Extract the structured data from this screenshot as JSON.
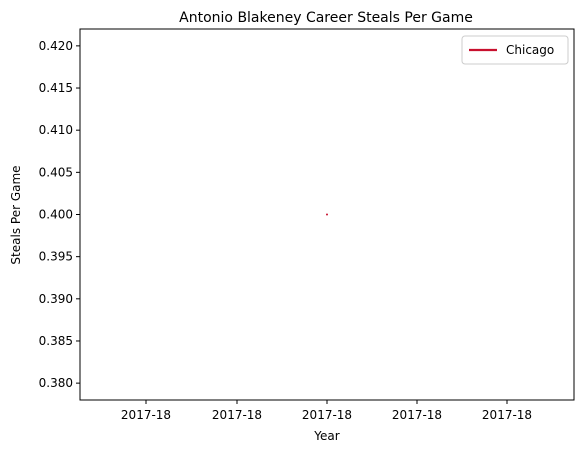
{
  "chart_data": {
    "type": "line",
    "title": "Antonio Blakeney Career Steals Per Game",
    "xlabel": "Year",
    "ylabel": "Steals Per Game",
    "x_ticks": [
      "2017-18",
      "2017-18",
      "2017-18",
      "2017-18",
      "2017-18"
    ],
    "y_ticks": [
      "0.380",
      "0.385",
      "0.390",
      "0.395",
      "0.400",
      "0.405",
      "0.410",
      "0.415",
      "0.420"
    ],
    "ylim": [
      0.378,
      0.422
    ],
    "grid": false,
    "legend_position": "top-right",
    "series": [
      {
        "name": "Chicago",
        "color": "#c8102e",
        "x": [
          "2017-18"
        ],
        "values": [
          0.4
        ]
      }
    ]
  }
}
